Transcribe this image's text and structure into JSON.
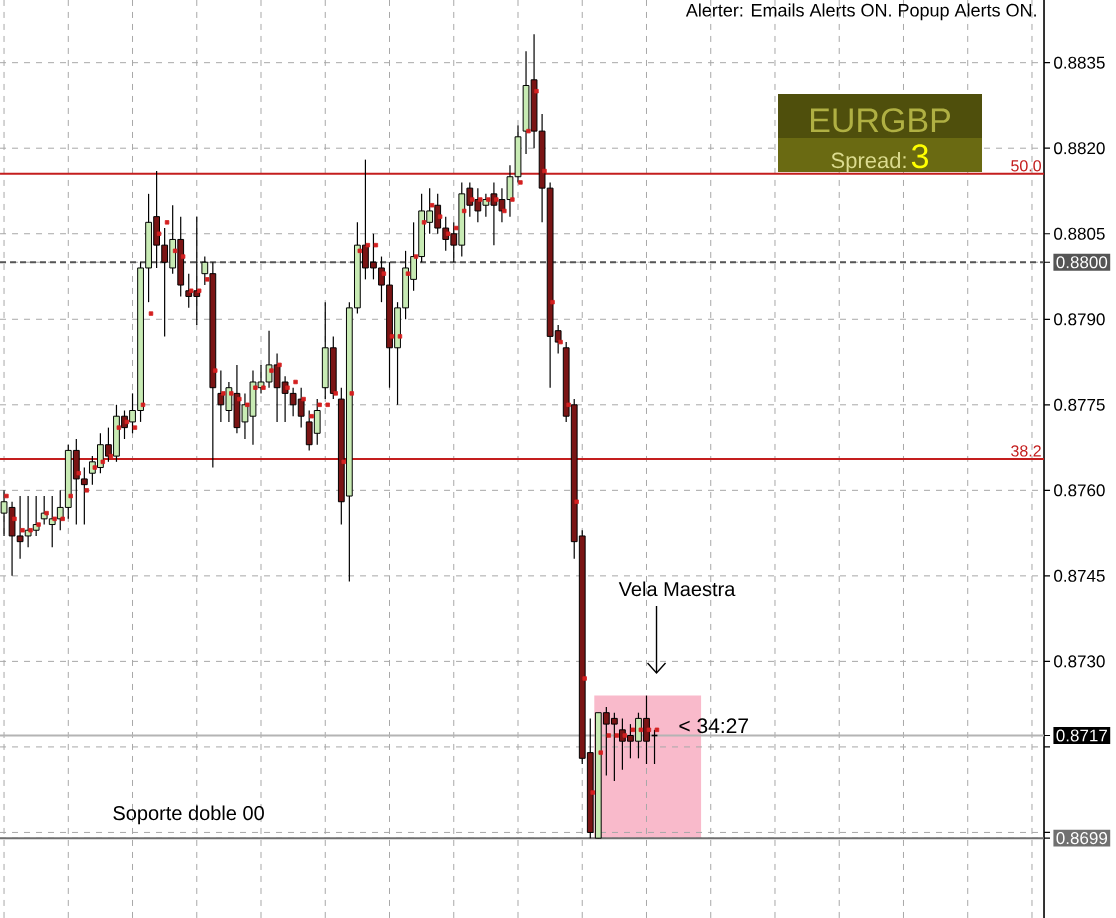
{
  "chart_data": {
    "type": "candlestick",
    "title": "EURGBP",
    "categories": [
      null,
      null,
      null,
      null,
      null,
      null,
      null,
      null,
      null,
      null,
      null,
      null,
      null,
      null,
      null,
      null,
      null,
      null,
      null,
      null,
      null,
      null,
      null,
      null,
      null,
      null,
      null,
      null,
      null,
      null,
      null,
      null,
      null,
      null,
      null,
      null,
      null,
      null,
      null,
      null,
      null,
      null,
      null,
      null,
      null,
      null,
      null,
      null,
      null,
      null,
      null,
      null,
      null,
      null,
      null,
      null,
      null,
      null,
      null,
      null,
      null,
      null,
      null,
      null,
      null,
      null,
      null,
      null,
      null,
      null,
      null,
      null,
      null,
      null,
      null,
      null,
      null,
      null,
      null,
      null,
      null,
      null,
      null,
      null,
      null,
      null,
      null,
      null,
      null,
      null,
      null,
      null,
      null,
      null,
      null,
      null,
      null,
      null,
      null,
      null,
      null,
      null,
      null,
      null,
      null,
      null,
      null,
      null,
      null,
      null,
      null,
      null,
      null,
      null,
      null,
      null,
      null,
      null,
      null,
      null,
      null,
      null,
      null,
      null,
      null,
      null,
      null,
      null,
      null,
      null
    ],
    "ohlc": [
      [
        0.8756,
        0.876,
        0.8752,
        0.8758
      ],
      [
        0.8757,
        0.8758,
        0.8745,
        0.8752
      ],
      [
        0.8752,
        0.8759,
        0.8748,
        0.8751
      ],
      [
        0.8752,
        0.8759,
        0.875,
        0.8753
      ],
      [
        0.8753,
        0.8759,
        0.8752,
        0.8754
      ],
      [
        0.8755,
        0.8759,
        0.8754,
        0.8756
      ],
      [
        0.8754,
        0.8759,
        0.875,
        0.8755
      ],
      [
        0.8755,
        0.876,
        0.8753,
        0.8757
      ],
      [
        0.8757,
        0.8768,
        0.8755,
        0.8767
      ],
      [
        0.8767,
        0.8769,
        0.8754,
        0.8762
      ],
      [
        0.8762,
        0.8764,
        0.8754,
        0.8761
      ],
      [
        0.8763,
        0.8766,
        0.8761,
        0.8765
      ],
      [
        0.8764,
        0.877,
        0.8763,
        0.8768
      ],
      [
        0.8768,
        0.8771,
        0.8765,
        0.8766
      ],
      [
        0.8766,
        0.8775,
        0.8765,
        0.8773
      ],
      [
        0.8773,
        0.8774,
        0.8769,
        0.8771
      ],
      [
        0.8772,
        0.8777,
        0.877,
        0.8774
      ],
      [
        0.8774,
        0.88,
        0.8772,
        0.8799
      ],
      [
        0.8799,
        0.8812,
        0.8793,
        0.8807
      ],
      [
        0.8808,
        0.8816,
        0.8799,
        0.8803
      ],
      [
        0.8803,
        0.8806,
        0.8787,
        0.88
      ],
      [
        0.8799,
        0.881,
        0.8798,
        0.8804
      ],
      [
        0.8804,
        0.8808,
        0.8794,
        0.8796
      ],
      [
        0.8795,
        0.8798,
        0.8792,
        0.8794
      ],
      [
        0.8795,
        0.8808,
        0.8789,
        0.8794
      ],
      [
        0.8798,
        0.8801,
        0.8796,
        0.88
      ],
      [
        0.8798,
        0.88,
        0.8764,
        0.8778
      ],
      [
        0.8777,
        0.8781,
        0.8772,
        0.8775
      ],
      [
        0.8774,
        0.8779,
        0.8772,
        0.8778
      ],
      [
        0.8777,
        0.8782,
        0.877,
        0.8771
      ],
      [
        0.8772,
        0.8777,
        0.8769,
        0.8775
      ],
      [
        0.8773,
        0.8781,
        0.8768,
        0.8779
      ],
      [
        0.8778,
        0.8782,
        0.8777,
        0.8779
      ],
      [
        0.8779,
        0.8788,
        0.8778,
        0.8782
      ],
      [
        0.8782,
        0.8784,
        0.8772,
        0.8778
      ],
      [
        0.8779,
        0.878,
        0.8772,
        0.8777
      ],
      [
        0.8777,
        0.8778,
        0.8773,
        0.8775
      ],
      [
        0.8776,
        0.8778,
        0.8771,
        0.8773
      ],
      [
        0.8772,
        0.8774,
        0.8767,
        0.8768
      ],
      [
        0.877,
        0.8776,
        0.8768,
        0.8774
      ],
      [
        0.8778,
        0.8793,
        0.8776,
        0.8785
      ],
      [
        0.8785,
        0.8787,
        0.8776,
        0.8777
      ],
      [
        0.8776,
        0.8778,
        0.8754,
        0.8758
      ],
      [
        0.8759,
        0.8793,
        0.8744,
        0.8792
      ],
      [
        0.8792,
        0.8807,
        0.8791,
        0.8803
      ],
      [
        0.8803,
        0.8818,
        0.8797,
        0.8799
      ],
      [
        0.88,
        0.8805,
        0.8797,
        0.8799
      ],
      [
        0.8799,
        0.8801,
        0.8793,
        0.8796
      ],
      [
        0.8796,
        0.88,
        0.8778,
        0.8785
      ],
      [
        0.8785,
        0.8793,
        0.8775,
        0.8792
      ],
      [
        0.8792,
        0.8802,
        0.879,
        0.8799
      ],
      [
        0.8797,
        0.8807,
        0.8795,
        0.8801
      ],
      [
        0.8801,
        0.8812,
        0.88,
        0.8809
      ],
      [
        0.8807,
        0.8813,
        0.8805,
        0.8809
      ],
      [
        0.881,
        0.8812,
        0.8805,
        0.8806
      ],
      [
        0.8806,
        0.8808,
        0.8802,
        0.8804
      ],
      [
        0.8805,
        0.8807,
        0.88,
        0.8803
      ],
      [
        0.8803,
        0.8814,
        0.8801,
        0.8812
      ],
      [
        0.8813,
        0.8814,
        0.8808,
        0.881
      ],
      [
        0.8811,
        0.8813,
        0.8807,
        0.8809
      ],
      [
        0.881,
        0.8812,
        0.8808,
        0.8811
      ],
      [
        0.8812,
        0.8814,
        0.8803,
        0.881
      ],
      [
        0.8811,
        0.8813,
        0.8807,
        0.8809
      ],
      [
        0.8811,
        0.8817,
        0.8808,
        0.8815
      ],
      [
        0.8815,
        0.8824,
        0.8814,
        0.8822
      ],
      [
        0.8823,
        0.8837,
        0.8819,
        0.8831
      ],
      [
        0.8832,
        0.884,
        0.882,
        0.8823
      ],
      [
        0.8823,
        0.8826,
        0.8807,
        0.8813
      ],
      [
        0.8813,
        0.8814,
        0.8778,
        0.8787
      ],
      [
        0.8788,
        0.8789,
        0.8784,
        0.8786
      ],
      [
        0.8785,
        0.8786,
        0.8772,
        0.8773
      ],
      [
        0.8775,
        0.8776,
        0.8748,
        0.8751
      ],
      [
        0.8752,
        0.8753,
        0.8712,
        0.8713
      ],
      [
        0.8714,
        0.872,
        0.8699,
        0.87
      ],
      [
        0.8699,
        0.8721,
        0.8699,
        0.8721
      ],
      [
        0.8721,
        0.8722,
        0.871,
        0.8719
      ],
      [
        0.872,
        0.8721,
        0.8709,
        0.8719
      ],
      [
        0.8718,
        0.872,
        0.8711,
        0.8716
      ],
      [
        0.8717,
        0.8719,
        0.8713,
        0.8716
      ],
      [
        0.8716,
        0.8721,
        0.8713,
        0.872
      ],
      [
        0.872,
        0.8724,
        0.8712,
        0.8716
      ],
      [
        0.8717,
        0.8718,
        0.8712,
        0.8717
      ],
      null,
      null,
      null,
      null,
      null,
      null,
      null,
      null,
      null,
      null,
      null,
      null,
      null,
      null,
      null,
      null,
      null,
      null,
      null,
      null,
      null,
      null,
      null,
      null,
      null,
      null,
      null,
      null,
      null,
      null,
      null,
      null,
      null,
      null,
      null,
      null,
      null,
      null,
      null,
      null,
      null,
      null,
      null,
      null,
      null,
      null,
      null,
      null
    ],
    "series": [
      {
        "type": "scatter",
        "color": "#d42020",
        "values": [
          0.8759,
          0.8755,
          0.8753,
          0.8753,
          0.8754,
          0.8756,
          0.8755,
          0.8755,
          0.8759,
          0.8763,
          0.876,
          0.8764,
          0.8765,
          0.8766,
          0.8771,
          0.8772,
          0.8771,
          0.8775,
          0.8791,
          0.8805,
          0.8807,
          0.8802,
          0.8801,
          0.8795,
          0.8795,
          0.8797,
          0.8781,
          0.8777,
          0.8777,
          0.8776,
          0.8775,
          0.8778,
          0.8778,
          0.8781,
          0.8782,
          0.8778,
          0.8779,
          0.8776,
          0.8773,
          0.8775,
          0.8775,
          0.8777,
          0.8765,
          0.8777,
          0.8802,
          0.8803,
          0.8803,
          0.8798,
          0.8787,
          0.8787,
          0.8798,
          0.8801,
          0.8807,
          0.881,
          0.8808,
          0.8805,
          0.8806,
          0.8809,
          0.8811,
          0.8811,
          0.8811,
          0.8811,
          0.8809,
          0.8811,
          0.8814,
          0.8823,
          0.883,
          0.8816,
          0.8793,
          0.8786,
          0.8775,
          0.8758,
          0.8727,
          0.8707,
          0.8714,
          0.8717,
          0.8717,
          0.8717,
          0.8718,
          0.8718,
          0.8718,
          0.8718,
          null,
          null,
          null,
          null,
          null,
          null,
          null,
          null,
          null,
          null,
          null,
          null,
          null,
          null,
          null,
          null,
          null,
          null,
          null,
          null,
          null,
          null,
          null,
          null,
          null,
          null,
          null,
          null,
          null,
          null,
          null,
          null,
          null,
          null,
          null,
          null,
          null,
          null,
          null,
          null,
          null,
          null,
          null,
          null,
          null,
          null,
          null,
          null
        ]
      }
    ],
    "marker": "square",
    "ylim": [
      0.8685,
      0.8846
    ],
    "yticks": [
      0.8699,
      {
        "value": 0.87,
        "label": null
      },
      {
        "value": 0.8715,
        "label": null
      },
      0.8717,
      {
        "value": 0.873,
        "label": "0.8730"
      },
      0.8745,
      {
        "value": 0.876,
        "label": "0.8760"
      },
      0.8775,
      {
        "value": 0.879,
        "label": "0.8790"
      },
      {
        "value": 0.88,
        "label": "0.8800"
      },
      0.8805,
      {
        "value": 0.882,
        "label": "0.8820"
      },
      0.8835
    ],
    "tick_labels": "y",
    "grid": true,
    "ref_lines": [
      {
        "axis": "y",
        "value": 0.88155,
        "color": "#c41e1e"
      },
      {
        "axis": "y",
        "value": 0.87655,
        "color": "#c41e1e"
      },
      {
        "axis": "y",
        "value": 0.88,
        "color": "#555555",
        "line_style": "dashed"
      },
      {
        "axis": "y",
        "value": 0.8717,
        "color": "#b4b4b4"
      },
      {
        "axis": "y",
        "value": 0.8699,
        "color": "#707070"
      }
    ],
    "annotations": [
      "Alerter: Emails Alerts ON. Popup Alerts ON.",
      "Vela Maestra",
      "< 34:27",
      "Soporte doble 00",
      "Spread:",
      "3",
      {
        "text": "50.0",
        "y": 0.88155
      },
      {
        "text": "38.2",
        "y": 0.87655
      }
    ]
  }
}
